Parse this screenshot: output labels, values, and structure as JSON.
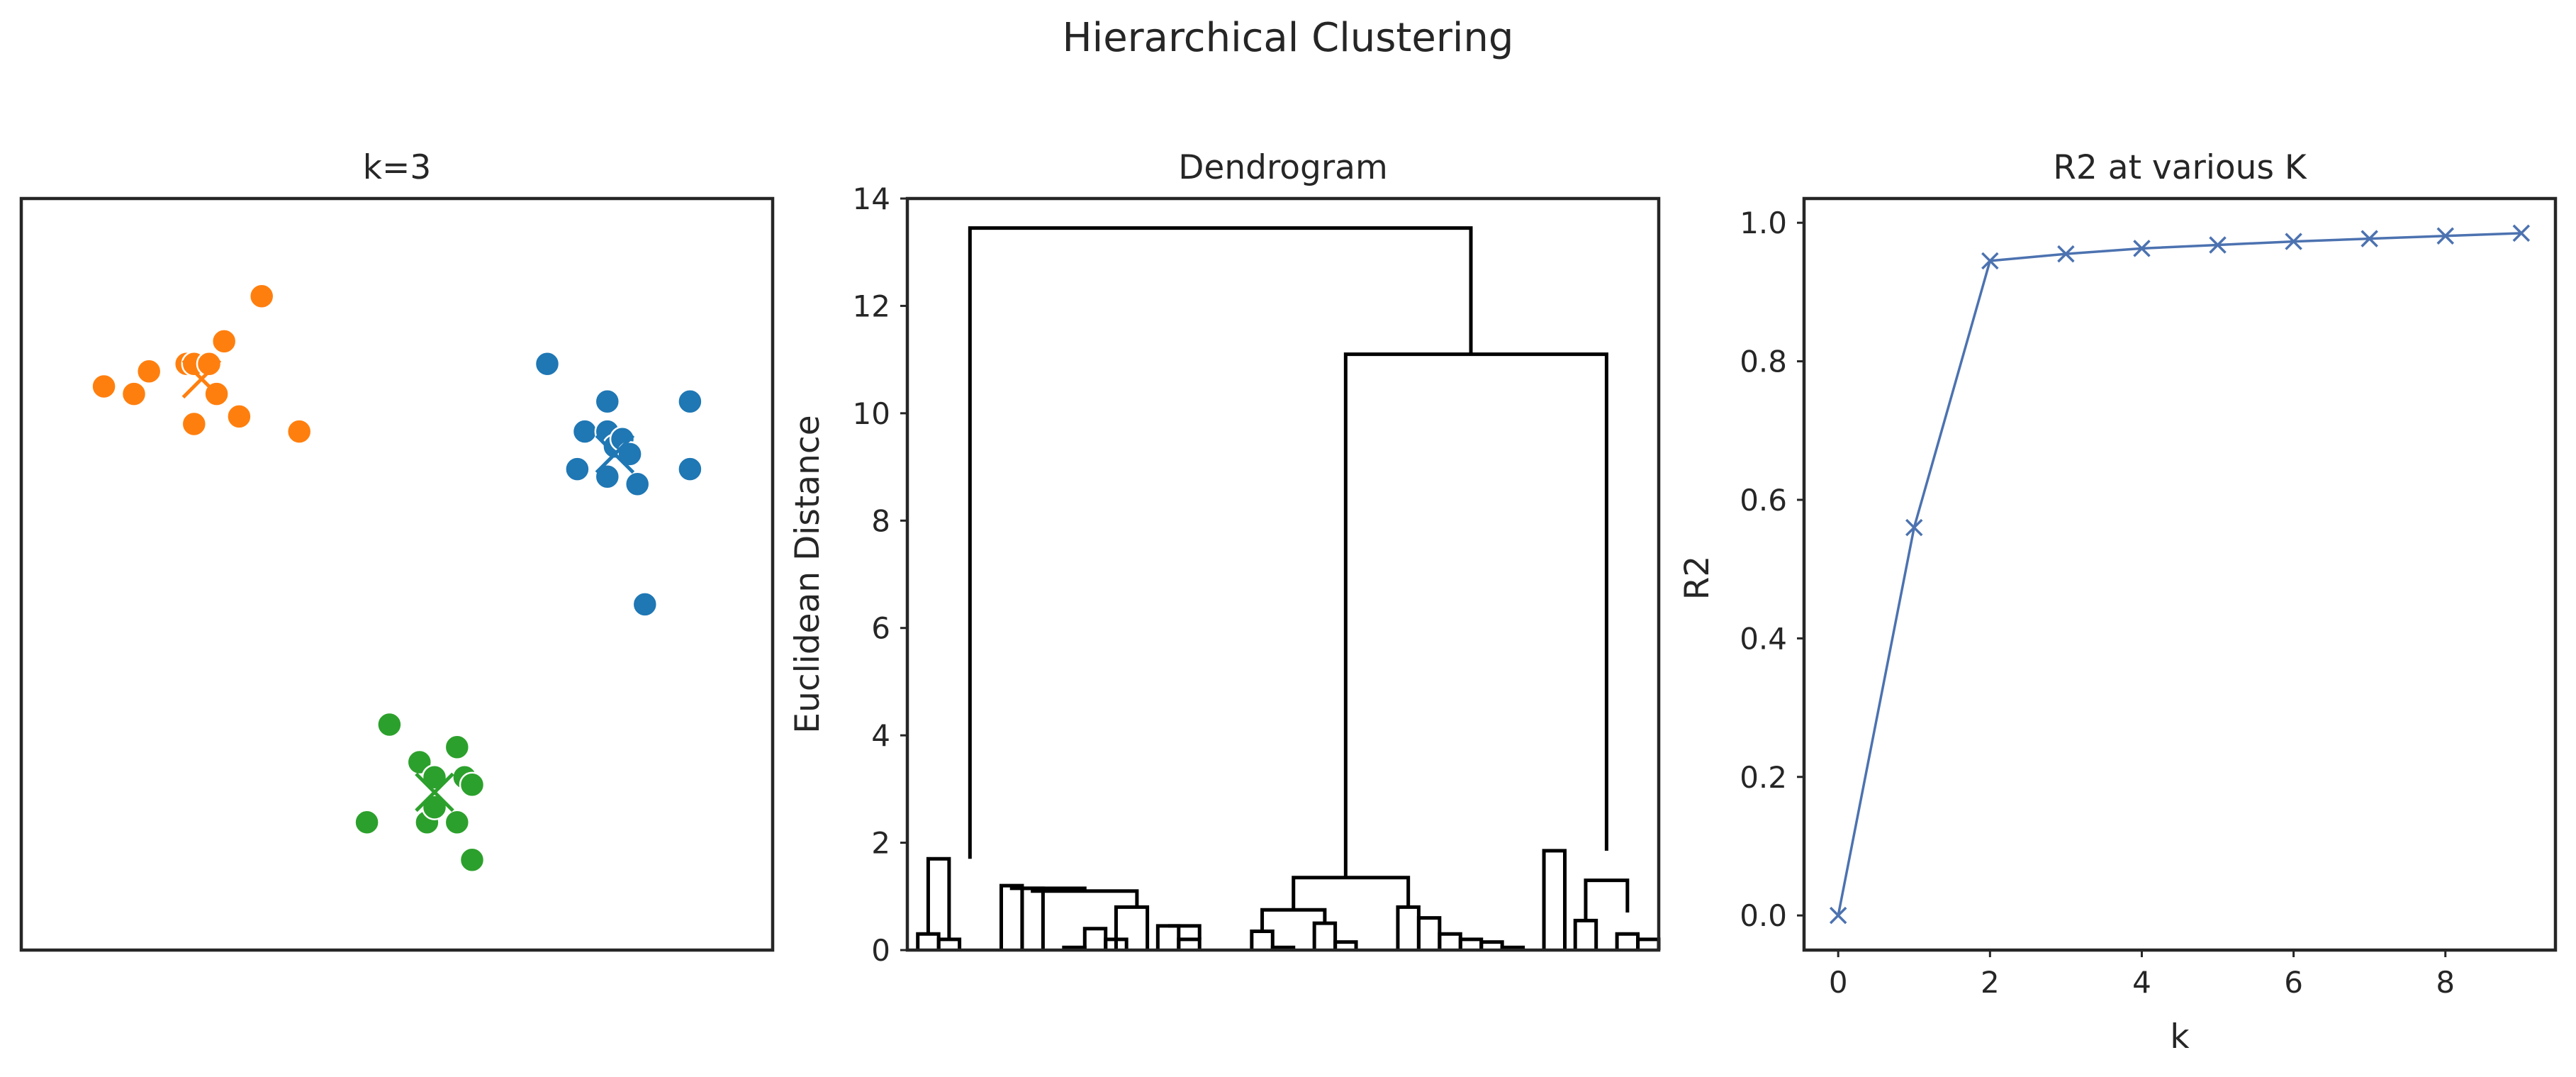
{
  "figure": {
    "suptitle": "Hierarchical Clustering"
  },
  "chart_data": [
    {
      "type": "scatter",
      "title": "k=3",
      "xlabel": "",
      "ylabel": "",
      "xlim": [
        0,
        10
      ],
      "ylim": [
        0,
        10
      ],
      "ticks_visible": false,
      "grid": false,
      "series": [
        {
          "color": "#ff7f0e",
          "points": [
            [
              3.2,
              8.7
            ],
            [
              1.1,
              7.5
            ],
            [
              1.5,
              7.4
            ],
            [
              1.7,
              7.7
            ],
            [
              2.2,
              7.8
            ],
            [
              2.3,
              7.8
            ],
            [
              2.5,
              7.8
            ],
            [
              2.6,
              7.4
            ],
            [
              2.7,
              8.1
            ],
            [
              2.9,
              7.1
            ],
            [
              2.3,
              7.0
            ],
            [
              3.7,
              6.9
            ]
          ],
          "centroid": [
            2.4,
            7.6
          ]
        },
        {
          "color": "#1f77b4",
          "points": [
            [
              7.0,
              7.8
            ],
            [
              7.8,
              7.3
            ],
            [
              8.9,
              7.3
            ],
            [
              7.5,
              6.9
            ],
            [
              7.8,
              6.9
            ],
            [
              7.9,
              6.7
            ],
            [
              8.0,
              6.8
            ],
            [
              8.1,
              6.6
            ],
            [
              7.4,
              6.4
            ],
            [
              7.8,
              6.3
            ],
            [
              8.2,
              6.2
            ],
            [
              8.9,
              6.4
            ],
            [
              8.3,
              4.6
            ]
          ],
          "centroid": [
            7.9,
            6.6
          ]
        },
        {
          "color": "#2ca02c",
          "points": [
            [
              4.9,
              3.0
            ],
            [
              5.3,
              2.5
            ],
            [
              5.8,
              2.7
            ],
            [
              5.5,
              2.3
            ],
            [
              5.9,
              2.3
            ],
            [
              6.0,
              2.2
            ],
            [
              4.6,
              1.7
            ],
            [
              5.4,
              1.7
            ],
            [
              5.8,
              1.7
            ],
            [
              5.5,
              1.9
            ],
            [
              6.0,
              1.2
            ]
          ],
          "centroid": [
            5.5,
            2.1
          ]
        }
      ]
    },
    {
      "type": "dendrogram",
      "title": "Dendrogram",
      "xlabel": "",
      "ylabel": "Euclidean Distance",
      "yticks": [
        0,
        2,
        4,
        6,
        8,
        10,
        12,
        14
      ],
      "ylim": [
        0,
        14.0
      ],
      "xlim": [
        0,
        360
      ],
      "x_ticks_visible": false,
      "color": "#000000",
      "links": [
        [
          5,
          15,
          0.0,
          0.3,
          0.3,
          0.0
        ],
        [
          15,
          25,
          0.0,
          0.2,
          0.2,
          0.0
        ],
        [
          10,
          20,
          0.3,
          1.7,
          1.7,
          0.2
        ],
        [
          45,
          55,
          0.0,
          1.2,
          1.2,
          0.0
        ],
        [
          55,
          65,
          0.0,
          1.15,
          1.15,
          0.0
        ],
        [
          75,
          85,
          0.0,
          0.05,
          0.05,
          0.0
        ],
        [
          85,
          95,
          0.0,
          0.4,
          0.4,
          0.0
        ],
        [
          95,
          105,
          0.0,
          0.2,
          0.2,
          0.0
        ],
        [
          100,
          115,
          0.0,
          0.8,
          0.8,
          0.0
        ],
        [
          120,
          130,
          0.0,
          0.45,
          0.45,
          0.0
        ],
        [
          130,
          140,
          0.0,
          0.2,
          0.2,
          0.0
        ],
        [
          60,
          110,
          1.15,
          1.1,
          1.1,
          0.8
        ],
        [
          50,
          85,
          1.2,
          1.15,
          1.15,
          1.1
        ],
        [
          125,
          140,
          0.45,
          0.45,
          0.45,
          0.2
        ],
        [
          165,
          175,
          0.0,
          0.35,
          0.35,
          0.0
        ],
        [
          175,
          185,
          0.0,
          0.05,
          0.05,
          0.0
        ],
        [
          170,
          200,
          0.35,
          0.75,
          0.75,
          0.5
        ],
        [
          195,
          205,
          0.0,
          0.5,
          0.5,
          0.0
        ],
        [
          205,
          215,
          0.0,
          0.15,
          0.15,
          0.0
        ],
        [
          235,
          245,
          0.0,
          0.8,
          0.8,
          0.0
        ],
        [
          245,
          255,
          0.0,
          0.6,
          0.6,
          0.0
        ],
        [
          255,
          265,
          0.0,
          0.3,
          0.3,
          0.0
        ],
        [
          265,
          275,
          0.0,
          0.2,
          0.2,
          0.0
        ],
        [
          275,
          285,
          0.0,
          0.15,
          0.15,
          0.0
        ],
        [
          285,
          295,
          0.0,
          0.05,
          0.05,
          0.0
        ],
        [
          185,
          240,
          0.75,
          1.35,
          1.35,
          0.8
        ],
        [
          305,
          315,
          0.0,
          1.85,
          1.85,
          0.0
        ],
        [
          320,
          330,
          0.0,
          0.55,
          0.55,
          0.0
        ],
        [
          325,
          345,
          0.55,
          1.3,
          1.3,
          0.7
        ],
        [
          340,
          350,
          0.0,
          0.3,
          0.3,
          0.0
        ],
        [
          350,
          360,
          0.0,
          0.2,
          0.2,
          0.0
        ],
        [
          210,
          335,
          1.35,
          11.1,
          11.1,
          1.85
        ],
        [
          30,
          270,
          1.7,
          13.45,
          13.45,
          11.1
        ]
      ]
    },
    {
      "type": "line",
      "title": "R2 at various K",
      "xlabel": "k",
      "ylabel": "R2",
      "x": [
        0,
        1,
        2,
        3,
        4,
        5,
        6,
        7,
        8,
        9
      ],
      "y": [
        0.0,
        0.56,
        0.945,
        0.955,
        0.963,
        0.968,
        0.973,
        0.977,
        0.981,
        0.985
      ],
      "xticks": [
        0,
        2,
        4,
        6,
        8
      ],
      "yticks": [
        0.0,
        0.2,
        0.4,
        0.6,
        0.8,
        1.0
      ],
      "xlim": [
        -0.45,
        9.45
      ],
      "ylim": [
        -0.05,
        1.035
      ],
      "marker": "x",
      "color": "#4c72b0",
      "grid": false
    }
  ]
}
